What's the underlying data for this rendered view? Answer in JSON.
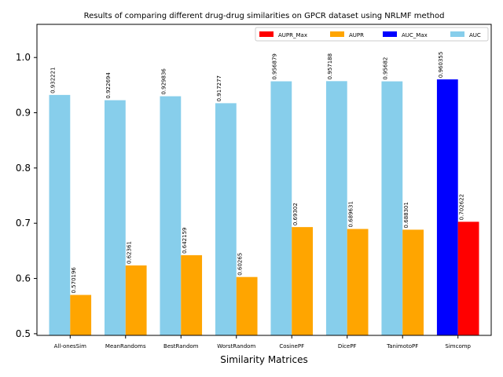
{
  "chart_data": {
    "type": "bar",
    "title": "Results of comparing different drug-drug similarities on GPCR dataset using NRLMF method",
    "xlabel": "Similarity Matrices",
    "ylabel": "",
    "ylim": [
      0.497,
      1.06
    ],
    "yticks": [
      0.5,
      0.6,
      0.7,
      0.8,
      0.9,
      1.0
    ],
    "ytick_labels": [
      "0.5",
      "0.6",
      "0.7",
      "0.8",
      "0.9",
      "1.0"
    ],
    "grid": false,
    "legend_position": "top-right",
    "categories": [
      "All-onesSim",
      "MeanRandoms",
      "BestRandom",
      "WorstRandom",
      "CosinePF",
      "DicePF",
      "TanimotoPF",
      "Simcomp"
    ],
    "series": [
      {
        "name": "AUC",
        "values": [
          0.932221,
          0.922694,
          0.929836,
          0.917277,
          0.956879,
          0.957188,
          0.95682,
          0.960355
        ],
        "labels": [
          "0.932221",
          "0.922694",
          "0.929836",
          "0.917277",
          "0.956879",
          "0.957188",
          "0.95682",
          "0.960355"
        ],
        "color": "#87CEEB"
      },
      {
        "name": "AUPR",
        "values": [
          0.570196,
          0.62361,
          0.642159,
          0.60265,
          0.69302,
          0.689631,
          0.688301,
          0.702622
        ],
        "labels": [
          "0.570196",
          "0.62361",
          "0.642159",
          "0.60265",
          "0.69302",
          "0.689631",
          "0.688301",
          "0.702622"
        ],
        "color": "#FFA500"
      }
    ],
    "highlight": {
      "category_index": 7,
      "auc_color": "#0000FF",
      "aupr_color": "#FF0000"
    },
    "legend": [
      {
        "label": "AUPR_Max",
        "color": "#FF0000"
      },
      {
        "label": "AUPR",
        "color": "#FFA500"
      },
      {
        "label": "AUC_Max",
        "color": "#0000FF"
      },
      {
        "label": "AUC",
        "color": "#87CEEB"
      }
    ]
  }
}
